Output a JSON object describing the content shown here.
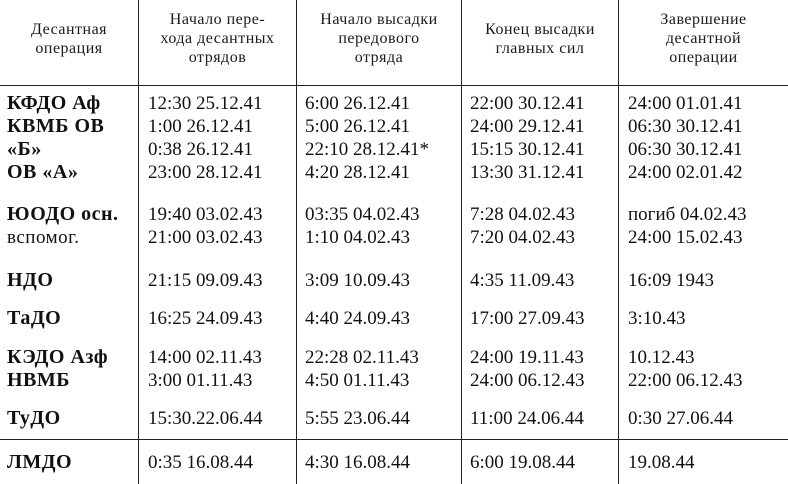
{
  "headers": [
    "Десантная\nоперация",
    "Начало пере-\nхода десантных\nотрядов",
    "Начало высадки\nпередового\nотряда",
    "Конец высадки\nглавных сил",
    "Завершение\nдесантной\nоперации"
  ],
  "groups": [
    {
      "rows": [
        {
          "op": "КФДО Аф",
          "c1": "12:30 25.12.41",
          "c2": "6:00 26.12.41",
          "c3": "22:00 30.12.41",
          "c4": "24:00 01.01.41"
        },
        {
          "op": "КВМБ ОВ",
          "c1": "1:00 26.12.41",
          "c2": "5:00 26.12.41",
          "c3": "24:00 29.12.41",
          "c4": "06:30 30.12.41"
        },
        {
          "op": "«Б»",
          "c1": "0:38 26.12.41",
          "c2": "22:10 28.12.41*",
          "c3": "15:15 30.12.41",
          "c4": "06:30 30.12.41"
        },
        {
          "op": "ОВ «А»",
          "c1": "23:00 28.12.41",
          "c2": "4:20 28.12.41",
          "c3": "13:30 31.12.41",
          "c4": "24:00 02.01.42"
        }
      ]
    },
    {
      "rows": [
        {
          "op": "ЮОДО осн.",
          "c1": "19:40 03.02.43",
          "c2": "03:35 04.02.43",
          "c3": "7:28 04.02.43",
          "c4": "погиб 04.02.43"
        },
        {
          "op": "вспомог.",
          "c1": "21:00 03.02.43",
          "c2": "1:10 04.02.43",
          "c3": "7:20 04.02.43",
          "c4": "24:00 15.02.43"
        }
      ]
    },
    {
      "rows": [
        {
          "op": "НДО",
          "c1": "21:15 09.09.43",
          "c2": "3:09 10.09.43",
          "c3": "4:35 11.09.43",
          "c4": "16:09 1943"
        }
      ]
    },
    {
      "rows": [
        {
          "op": "ТаДО",
          "c1": "16:25 24.09.43",
          "c2": "4:40 24.09.43",
          "c3": "17:00 27.09.43",
          "c4": "3:10.43"
        }
      ]
    },
    {
      "rows": [
        {
          "op": "КЭДО Азф",
          "c1": "14:00 02.11.43",
          "c2": "22:28 02.11.43",
          "c3": "24:00 19.11.43",
          "c4": "10.12.43"
        },
        {
          "op": "НВМБ",
          "c1": "3:00 01.11.43",
          "c2": "4:50 01.11.43",
          "c3": "24:00 06.12.43",
          "c4": "22:00 06.12.43"
        }
      ]
    },
    {
      "rows": [
        {
          "op": "ТуДО",
          "c1": "15:30.22.06.44",
          "c2": "5:55 23.06.44",
          "c3": "11:00 24.06.44",
          "c4": "0:30 27.06.44"
        }
      ]
    },
    {
      "rows": [
        {
          "op": "ЛМДО",
          "c1": "0:35 16.08.44",
          "c2": "4:30 16.08.44",
          "c3": "6:00 19.08.44",
          "c4": "19.08.44"
        }
      ]
    }
  ]
}
